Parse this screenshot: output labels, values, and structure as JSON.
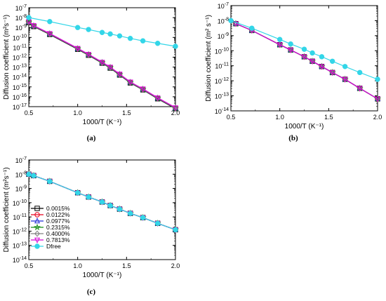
{
  "chart_data": [
    {
      "type": "line",
      "panel_label": "(a)",
      "xlabel": "1000/T (K⁻¹)",
      "ylabel": "Diffusion coefficient (m²s⁻¹)",
      "xlim": [
        0.5,
        2.0
      ],
      "x_ticks": [
        "0.5",
        "1.0",
        "1.5",
        "2.0"
      ],
      "y_log_exp": [
        -17,
        -7
      ],
      "log_y": true,
      "series": [
        {
          "name": "0.0015%",
          "color": "#000000",
          "marker": "square",
          "x": [
            0.5,
            0.55,
            0.714,
            1.0,
            1.111,
            1.25,
            1.333,
            1.429,
            1.538,
            1.667,
            1.818,
            2.0
          ],
          "log10_y": [
            -8.5,
            -8.9,
            -9.7,
            -11.2,
            -11.8,
            -12.6,
            -13.1,
            -13.8,
            -14.6,
            -15.3,
            -16.2,
            -17.2
          ]
        },
        {
          "name": "0.0122%",
          "color": "#e8001c",
          "marker": "circle",
          "x": [
            0.5,
            0.55,
            0.714,
            1.0,
            1.111,
            1.25,
            1.333,
            1.429,
            1.538,
            1.667,
            1.818,
            2.0
          ],
          "log10_y": [
            -8.45,
            -8.85,
            -9.65,
            -11.15,
            -11.75,
            -12.55,
            -13.05,
            -13.75,
            -14.55,
            -15.25,
            -16.15,
            -17.15
          ]
        },
        {
          "name": "0.0977%",
          "color": "#1f2bd6",
          "marker": "triangle-up",
          "x": [
            0.5,
            0.55,
            0.714,
            1.0,
            1.111,
            1.25,
            1.333,
            1.429,
            1.538,
            1.667,
            1.818,
            2.0
          ],
          "log10_y": [
            -8.45,
            -8.85,
            -9.65,
            -11.15,
            -11.75,
            -12.55,
            -13.05,
            -13.75,
            -14.55,
            -15.25,
            -16.15,
            -17.15
          ]
        },
        {
          "name": "0.2315%",
          "color": "#118a11",
          "marker": "star",
          "x": [
            0.5,
            0.55,
            0.714,
            1.0,
            1.111,
            1.25,
            1.333,
            1.429,
            1.538,
            1.667,
            1.818,
            2.0
          ],
          "log10_y": [
            -8.45,
            -8.85,
            -9.65,
            -11.15,
            -11.75,
            -12.55,
            -13.05,
            -13.75,
            -14.55,
            -15.25,
            -16.15,
            -17.15
          ]
        },
        {
          "name": "0.4000%",
          "color": "#808080",
          "marker": "diamond",
          "x": [
            0.5,
            0.55,
            0.714,
            1.0,
            1.111,
            1.25,
            1.333,
            1.429,
            1.538,
            1.667,
            1.818,
            2.0
          ],
          "log10_y": [
            -8.45,
            -8.85,
            -9.65,
            -11.15,
            -11.75,
            -12.55,
            -13.05,
            -13.75,
            -14.55,
            -15.25,
            -16.15,
            -17.15
          ]
        },
        {
          "name": "0.7813%",
          "color": "#d600d6",
          "marker": "triangle-down",
          "x": [
            0.5,
            0.55,
            0.714,
            1.0,
            1.111,
            1.25,
            1.333,
            1.429,
            1.538,
            1.667,
            1.818,
            2.0
          ],
          "log10_y": [
            -8.4,
            -8.8,
            -9.6,
            -11.1,
            -11.7,
            -12.5,
            -13.0,
            -13.7,
            -14.5,
            -15.2,
            -16.1,
            -17.1
          ]
        },
        {
          "name": "Dfree",
          "color": "#33d6e8",
          "marker": "circle-filled",
          "x": [
            0.5,
            0.714,
            1.0,
            1.111,
            1.25,
            1.333,
            1.429,
            1.538,
            1.667,
            1.818,
            2.0
          ],
          "log10_y": [
            -8.0,
            -8.4,
            -9.0,
            -9.2,
            -9.5,
            -9.65,
            -9.85,
            -10.1,
            -10.35,
            -10.6,
            -10.9
          ]
        }
      ]
    },
    {
      "type": "line",
      "panel_label": "(b)",
      "xlabel": "1000/T (K⁻¹)",
      "ylabel": "Diffusion coefficient (m² s⁻¹)",
      "xlim": [
        0.5,
        2.0
      ],
      "x_ticks": [
        "0.5",
        "1.0",
        "1.5",
        "2.0"
      ],
      "y_log_exp": [
        -14,
        -7
      ],
      "log_y": true,
      "series": [
        {
          "name": "0.0015%",
          "color": "#000000",
          "marker": "square",
          "x": [
            0.55,
            0.714,
            1.0,
            1.111,
            1.25,
            1.333,
            1.429,
            1.538,
            1.667,
            1.818,
            2.0
          ],
          "log10_y": [
            -8.2,
            -8.65,
            -9.6,
            -9.95,
            -10.4,
            -10.7,
            -11.05,
            -11.45,
            -11.9,
            -12.5,
            -13.2
          ]
        },
        {
          "name": "0.0122%",
          "color": "#e8001c",
          "marker": "circle",
          "x": [
            0.55,
            0.714,
            1.0,
            1.111,
            1.25,
            1.333,
            1.429,
            1.538,
            1.667,
            1.818,
            2.0
          ],
          "log10_y": [
            -8.2,
            -8.65,
            -9.6,
            -9.95,
            -10.4,
            -10.7,
            -11.05,
            -11.45,
            -11.9,
            -12.5,
            -13.2
          ]
        },
        {
          "name": "0.0977%",
          "color": "#1f2bd6",
          "marker": "triangle-up",
          "x": [
            0.55,
            0.714,
            1.0,
            1.111,
            1.25,
            1.333,
            1.429,
            1.538,
            1.667,
            1.818,
            2.0
          ],
          "log10_y": [
            -8.2,
            -8.65,
            -9.6,
            -9.95,
            -10.4,
            -10.7,
            -11.05,
            -11.45,
            -11.9,
            -12.5,
            -13.2
          ]
        },
        {
          "name": "0.2315%",
          "color": "#118a11",
          "marker": "star",
          "x": [
            0.55,
            0.714,
            1.0,
            1.111,
            1.25,
            1.333,
            1.429,
            1.538,
            1.667,
            1.818,
            2.0
          ],
          "log10_y": [
            -8.2,
            -8.65,
            -9.6,
            -9.95,
            -10.4,
            -10.7,
            -11.05,
            -11.45,
            -11.9,
            -12.5,
            -13.2
          ]
        },
        {
          "name": "0.4000%",
          "color": "#808080",
          "marker": "diamond",
          "x": [
            0.55,
            0.714,
            1.0,
            1.111,
            1.25,
            1.333,
            1.429,
            1.538,
            1.667,
            1.818,
            2.0
          ],
          "log10_y": [
            -8.2,
            -8.65,
            -9.6,
            -9.95,
            -10.4,
            -10.7,
            -11.05,
            -11.45,
            -11.9,
            -12.5,
            -13.2
          ]
        },
        {
          "name": "0.7813%",
          "color": "#d600d6",
          "marker": "triangle-down",
          "x": [
            0.55,
            0.714,
            1.0,
            1.111,
            1.25,
            1.333,
            1.429,
            1.538,
            1.667,
            1.818,
            2.0
          ],
          "log10_y": [
            -8.2,
            -8.65,
            -9.6,
            -9.95,
            -10.4,
            -10.7,
            -11.05,
            -11.45,
            -11.9,
            -12.5,
            -13.2
          ]
        },
        {
          "name": "Dfree",
          "color": "#33d6e8",
          "marker": "circle-filled",
          "x": [
            0.5,
            0.714,
            1.0,
            1.111,
            1.25,
            1.333,
            1.429,
            1.538,
            1.667,
            1.818,
            2.0
          ],
          "log10_y": [
            -8.0,
            -8.5,
            -9.25,
            -9.55,
            -9.9,
            -10.15,
            -10.4,
            -10.7,
            -11.05,
            -11.45,
            -11.9
          ]
        }
      ]
    },
    {
      "type": "line",
      "panel_label": "(c)",
      "xlabel": "1000/T (K⁻¹)",
      "ylabel": "Diffusion coefficient (m²s⁻¹)",
      "xlim": [
        0.5,
        2.0
      ],
      "x_ticks": [
        "0.5",
        "1.0",
        "1.5",
        "2.0"
      ],
      "y_log_exp": [
        -14,
        -7
      ],
      "log_y": true,
      "legend_position": "left",
      "series": [
        {
          "name": "0.0015%",
          "color": "#000000",
          "marker": "square",
          "x": [
            0.5,
            0.55,
            0.714,
            1.0,
            1.111,
            1.25,
            1.333,
            1.429,
            1.538,
            1.667,
            1.818,
            2.0
          ],
          "log10_y": [
            -8.0,
            -8.1,
            -8.5,
            -9.3,
            -9.6,
            -9.95,
            -10.2,
            -10.45,
            -10.75,
            -11.05,
            -11.45,
            -11.9
          ]
        },
        {
          "name": "0.0122%",
          "color": "#e8001c",
          "marker": "circle",
          "x": [
            0.5,
            0.55,
            0.714,
            1.0,
            1.111,
            1.25,
            1.333,
            1.429,
            1.538,
            1.667,
            1.818,
            2.0
          ],
          "log10_y": [
            -8.0,
            -8.1,
            -8.5,
            -9.3,
            -9.6,
            -9.95,
            -10.2,
            -10.45,
            -10.75,
            -11.05,
            -11.45,
            -11.9
          ]
        },
        {
          "name": "0.0977%",
          "color": "#1f2bd6",
          "marker": "triangle-up",
          "x": [
            0.5,
            0.55,
            0.714,
            1.0,
            1.111,
            1.25,
            1.333,
            1.429,
            1.538,
            1.667,
            1.818,
            2.0
          ],
          "log10_y": [
            -8.0,
            -8.1,
            -8.5,
            -9.3,
            -9.6,
            -9.95,
            -10.2,
            -10.45,
            -10.75,
            -11.05,
            -11.45,
            -11.9
          ]
        },
        {
          "name": "0.2315%",
          "color": "#118a11",
          "marker": "star",
          "x": [
            0.5,
            0.55,
            0.714,
            1.0,
            1.111,
            1.25,
            1.333,
            1.429,
            1.538,
            1.667,
            1.818,
            2.0
          ],
          "log10_y": [
            -8.0,
            -8.1,
            -8.5,
            -9.3,
            -9.6,
            -9.95,
            -10.2,
            -10.45,
            -10.75,
            -11.05,
            -11.45,
            -11.9
          ]
        },
        {
          "name": "0.4000%",
          "color": "#808080",
          "marker": "diamond",
          "x": [
            0.5,
            0.55,
            0.714,
            1.0,
            1.111,
            1.25,
            1.333,
            1.429,
            1.538,
            1.667,
            1.818,
            2.0
          ],
          "log10_y": [
            -8.0,
            -8.1,
            -8.5,
            -9.3,
            -9.6,
            -9.95,
            -10.2,
            -10.45,
            -10.75,
            -11.05,
            -11.45,
            -11.9
          ]
        },
        {
          "name": "0.7813%",
          "color": "#d600d6",
          "marker": "triangle-down",
          "x": [
            0.5,
            0.55,
            0.714,
            1.0,
            1.111,
            1.25,
            1.333,
            1.429,
            1.538,
            1.667,
            1.818,
            2.0
          ],
          "log10_y": [
            -8.0,
            -8.1,
            -8.5,
            -9.3,
            -9.6,
            -9.95,
            -10.2,
            -10.45,
            -10.75,
            -11.05,
            -11.45,
            -11.9
          ]
        },
        {
          "name": "Dfree",
          "color": "#33d6e8",
          "marker": "circle-filled",
          "x": [
            0.5,
            0.55,
            0.714,
            1.0,
            1.111,
            1.25,
            1.333,
            1.429,
            1.538,
            1.667,
            1.818,
            2.0
          ],
          "log10_y": [
            -8.0,
            -8.1,
            -8.5,
            -9.3,
            -9.6,
            -9.95,
            -10.2,
            -10.45,
            -10.75,
            -11.05,
            -11.45,
            -11.9
          ]
        }
      ]
    }
  ]
}
